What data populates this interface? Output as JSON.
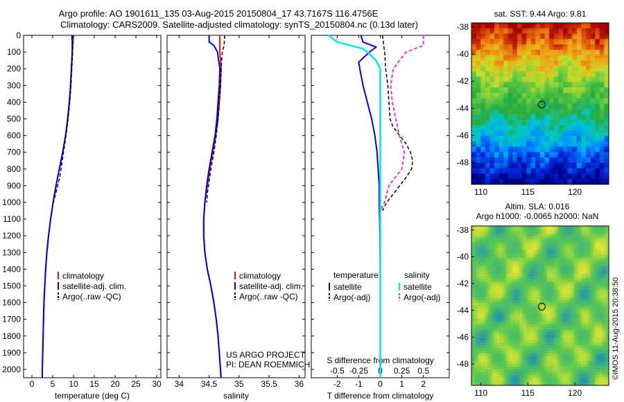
{
  "header": {
    "line1": "Argo profile: AO 1901611_135 03-Aug-2015 20150804_17 43.7167S 116.4756E",
    "line2": "Climatology: CARS2009. Satellite-adjusted climatology: synTS_20150804.nc (0.13d later)"
  },
  "credit": {
    "project": "US ARGO PROJECT",
    "pi": "PI: DEAN ROEMMICH",
    "imos": "©IMOS 11-Aug-2015 20:38:50"
  },
  "colors": {
    "climatology": "#ee1111",
    "satellite": "#0000ee",
    "argo": "#000000",
    "sal_satellite": "#00e5ee",
    "sal_argo": "#ee33dd"
  },
  "chart_data": [
    {
      "type": "line",
      "xlabel": "temperature (deg C)",
      "xlim": [
        -2,
        31
      ],
      "xticks": [
        "0",
        "5",
        "10",
        "15",
        "20",
        "25",
        "30"
      ],
      "ylim": [
        0,
        2050
      ],
      "yticks": [
        "0",
        "100",
        "200",
        "300",
        "400",
        "500",
        "600",
        "700",
        "800",
        "900",
        "1000",
        "1100",
        "1200",
        "1300",
        "1400",
        "1500",
        "1600",
        "1700",
        "1800",
        "1900",
        "2000"
      ],
      "legend": [
        "climatology",
        "satellite-adj. clim.",
        "Argo(..raw -QC)"
      ],
      "series": [
        {
          "name": "climatology",
          "depth": [
            0,
            100,
            200,
            300,
            400,
            500,
            600,
            700,
            800,
            900,
            1000,
            1100,
            1200,
            1300,
            1400,
            1500,
            1600,
            1700,
            1800,
            1900,
            2000,
            2050
          ],
          "values": [
            10.0,
            9.7,
            9.5,
            9.3,
            9.0,
            8.6,
            8.1,
            7.4,
            6.6,
            5.8,
            5.1,
            4.5,
            4.0,
            3.6,
            3.3,
            3.1,
            2.9,
            2.8,
            2.7,
            2.6,
            2.5,
            2.5
          ]
        },
        {
          "name": "satellite-adj. clim.",
          "depth": [
            0,
            40,
            100,
            200,
            300,
            400,
            500,
            600,
            700,
            800,
            900,
            1000,
            1100,
            1200,
            1300,
            1400,
            1500,
            1600,
            1700,
            1800,
            1900,
            2000,
            2050
          ],
          "values": [
            9.6,
            9.7,
            9.7,
            9.5,
            9.3,
            9.0,
            8.6,
            8.1,
            7.4,
            6.6,
            5.8,
            5.1,
            4.5,
            4.0,
            3.6,
            3.3,
            3.1,
            2.9,
            2.8,
            2.7,
            2.6,
            2.5,
            2.5
          ]
        },
        {
          "name": "Argo(..raw -QC)",
          "depth": [
            0,
            100,
            200,
            300,
            400,
            500,
            600,
            700,
            800,
            850,
            900,
            950,
            1000
          ],
          "values": [
            9.9,
            9.8,
            9.6,
            9.4,
            9.1,
            8.7,
            8.2,
            7.6,
            7.0,
            6.7,
            6.2,
            5.7,
            5.2
          ]
        }
      ]
    },
    {
      "type": "line",
      "xlabel": "salinity",
      "xlim": [
        33.8,
        36.1
      ],
      "xticks": [
        "34",
        "34.5",
        "35",
        "35.5",
        "36"
      ],
      "ylim": [
        0,
        2050
      ],
      "legend": [
        "climatology",
        "satellite-adj. clim.",
        "Argo(..raw -QC)"
      ],
      "series": [
        {
          "name": "climatology",
          "depth": [
            0,
            100,
            200,
            300,
            400,
            500,
            600,
            700,
            800,
            900,
            1000,
            1100,
            1200,
            1300,
            1400,
            1500,
            1600,
            1700,
            1800,
            1900,
            2000,
            2050
          ],
          "values": [
            34.68,
            34.68,
            34.7,
            34.69,
            34.67,
            34.65,
            34.61,
            34.56,
            34.51,
            34.47,
            34.43,
            34.41,
            34.41,
            34.43,
            34.47,
            34.53,
            34.58,
            34.62,
            34.65,
            34.67,
            34.69,
            34.7
          ]
        },
        {
          "name": "satellite-adj. clim.",
          "depth": [
            0,
            40,
            60,
            100,
            200,
            300,
            400,
            500,
            600,
            700,
            800,
            900,
            1000,
            1100,
            1200,
            1300,
            1400,
            1500,
            1600,
            1700,
            1800,
            1900,
            2000,
            2050
          ],
          "values": [
            34.5,
            34.5,
            34.58,
            34.64,
            34.68,
            34.67,
            34.65,
            34.63,
            34.6,
            34.55,
            34.5,
            34.46,
            34.43,
            34.41,
            34.41,
            34.43,
            34.47,
            34.53,
            34.58,
            34.62,
            34.65,
            34.67,
            34.69,
            34.7
          ]
        },
        {
          "name": "Argo(..raw -QC)",
          "depth": [
            0,
            60,
            100,
            200,
            300,
            400,
            500,
            600,
            700,
            800,
            900,
            950,
            1000
          ],
          "values": [
            34.76,
            34.75,
            34.72,
            34.7,
            34.69,
            34.67,
            34.65,
            34.62,
            34.58,
            34.53,
            34.49,
            34.47,
            34.46
          ]
        }
      ]
    },
    {
      "type": "line",
      "xlabel": "T difference from climatology",
      "xlabel2": "S difference from climatology",
      "xlim": [
        -3.2,
        3.2
      ],
      "xticks": [
        "-2",
        "-1",
        "0",
        "1",
        "2"
      ],
      "xticks2": [
        "-0.5",
        "-0.25",
        "0",
        "0.25",
        "0.5"
      ],
      "ylim": [
        0,
        2050
      ],
      "legend_left": {
        "header": "temperature",
        "items": [
          "satellite",
          "Argo(-adj)"
        ]
      },
      "legend_right": {
        "header": "salinity",
        "items": [
          "satellite",
          "Argo(-adj)"
        ]
      },
      "series": [
        {
          "name": "temperature satellite",
          "depth": [
            0,
            40,
            70,
            100,
            160,
            200,
            300,
            400,
            500,
            600,
            700,
            800,
            900,
            1000,
            1100,
            1200,
            1300,
            1400,
            1500,
            2050
          ],
          "values": [
            -0.9,
            -0.8,
            -0.2,
            -0.5,
            -1.0,
            -0.95,
            -0.8,
            -0.6,
            -0.4,
            -0.25,
            -0.15,
            -0.1,
            -0.05,
            -0.05,
            -0.03,
            -0.02,
            -0.01,
            0,
            0,
            0
          ]
        },
        {
          "name": "temperature Argo(-adj)",
          "depth": [
            0,
            100,
            200,
            300,
            400,
            500,
            550,
            600,
            650,
            700,
            750,
            800,
            850,
            900,
            950,
            1000,
            1050
          ],
          "values": [
            0.1,
            0.2,
            0.25,
            0.35,
            0.4,
            0.45,
            0.6,
            0.9,
            1.2,
            1.4,
            1.5,
            1.45,
            1.2,
            0.9,
            0.6,
            0.3,
            0.1
          ]
        },
        {
          "name": "salinity satellite",
          "depth": [
            0,
            40,
            80,
            100,
            150,
            200,
            300,
            400,
            500,
            600,
            700,
            800,
            900,
            1000,
            2050
          ],
          "values": [
            -0.6,
            -0.5,
            -0.2,
            -0.15,
            -0.05,
            0,
            0,
            0,
            0,
            0,
            0,
            0,
            0,
            0,
            0
          ]
        },
        {
          "name": "salinity Argo(-adj)",
          "depth": [
            0,
            60,
            100,
            200,
            300,
            400,
            500,
            600,
            700,
            800,
            900,
            1000,
            1050
          ],
          "values": [
            0.5,
            0.5,
            0.3,
            0.15,
            0.12,
            0.14,
            0.18,
            0.22,
            0.28,
            0.25,
            0.1,
            0.05,
            0
          ]
        }
      ]
    },
    {
      "type": "heatmap",
      "title": "sat. SST: 9.44  Argo: 9.81",
      "xticks": [
        "110",
        "115",
        "120"
      ],
      "yticks": [
        "-38",
        "-40",
        "-42",
        "-44",
        "-46",
        "-48"
      ],
      "xlim": [
        109,
        123.6
      ],
      "ylim": [
        -49.6,
        -37.7
      ],
      "marker": {
        "lon": 116.48,
        "lat": -43.72
      }
    },
    {
      "type": "heatmap",
      "title": "Altim. SLA: 0.016",
      "subtitle": "Argo h1000: -0.0065 h2000: NaN",
      "xticks": [
        "110",
        "115",
        "120"
      ],
      "yticks": [
        "-38",
        "-40",
        "-42",
        "-44",
        "-46",
        "-48"
      ],
      "xlim": [
        109,
        123.6
      ],
      "ylim": [
        -49.6,
        -37.7
      ],
      "marker": {
        "lon": 116.48,
        "lat": -43.72
      }
    }
  ]
}
